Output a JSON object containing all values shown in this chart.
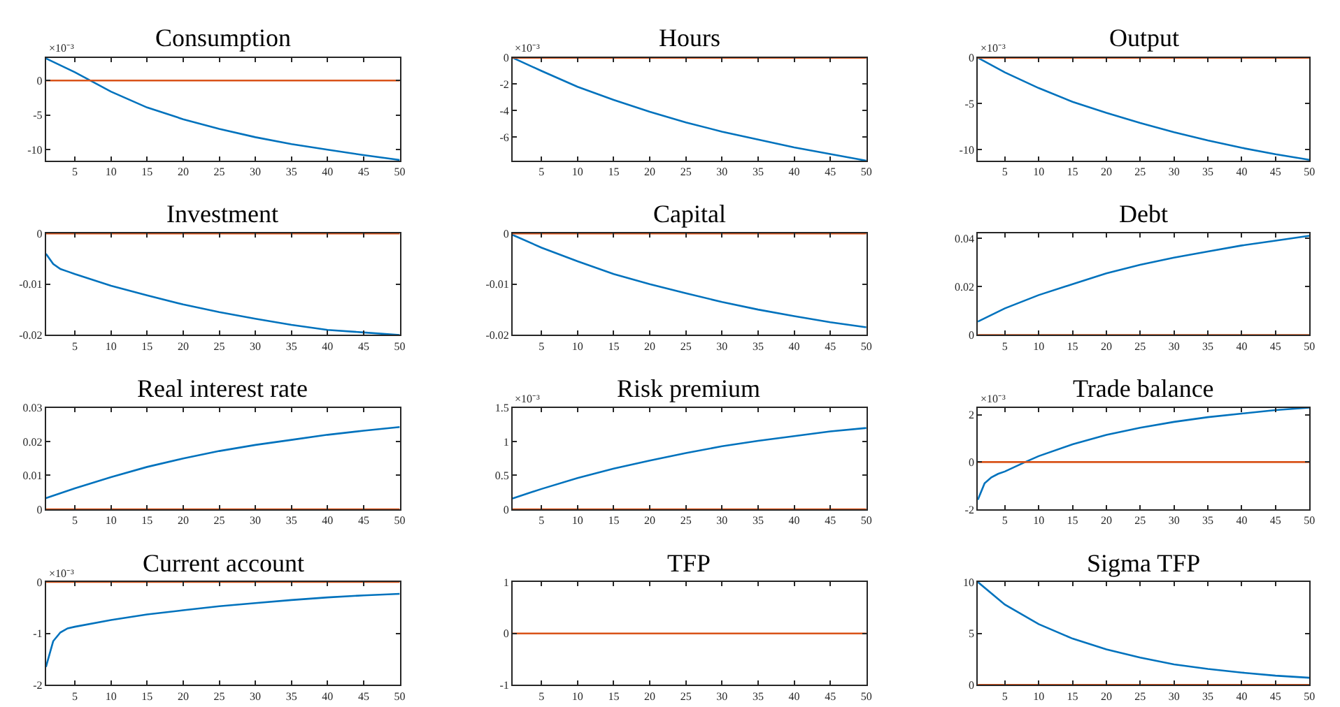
{
  "chart_data": [
    {
      "type": "line",
      "title": "Consumption",
      "annotations": [
        "×10⁻³"
      ],
      "xlim": [
        1,
        50
      ],
      "xticks": [
        5,
        10,
        15,
        20,
        25,
        30,
        35,
        40,
        45,
        50
      ],
      "ylim": [
        -11.6,
        3.3
      ],
      "yticks": [
        -10,
        -5,
        0
      ],
      "series": [
        {
          "color": "#0072bd",
          "x": [
            1,
            5,
            10,
            15,
            20,
            25,
            30,
            35,
            40,
            45,
            50
          ],
          "values": [
            3.2,
            1.2,
            -1.6,
            -3.9,
            -5.6,
            -7.0,
            -8.2,
            -9.2,
            -10.0,
            -10.8,
            -11.5
          ]
        },
        {
          "color": "#d95319",
          "x": [
            1,
            50
          ],
          "values": [
            0,
            0
          ]
        }
      ]
    },
    {
      "type": "line",
      "title": "Hours",
      "annotations": [
        "×10⁻³"
      ],
      "xlim": [
        1,
        50
      ],
      "xticks": [
        5,
        10,
        15,
        20,
        25,
        30,
        35,
        40,
        45,
        50
      ],
      "ylim": [
        -7.8,
        0
      ],
      "yticks": [
        -6,
        -4,
        -2,
        0
      ],
      "series": [
        {
          "color": "#0072bd",
          "x": [
            1,
            5,
            10,
            15,
            20,
            25,
            30,
            35,
            40,
            45,
            50
          ],
          "values": [
            0,
            -1.0,
            -2.2,
            -3.2,
            -4.1,
            -4.9,
            -5.6,
            -6.2,
            -6.8,
            -7.3,
            -7.8
          ]
        },
        {
          "color": "#d95319",
          "x": [
            1,
            50
          ],
          "values": [
            0,
            0
          ]
        }
      ]
    },
    {
      "type": "line",
      "title": "Output",
      "annotations": [
        "×10⁻³"
      ],
      "xlim": [
        1,
        50
      ],
      "xticks": [
        5,
        10,
        15,
        20,
        25,
        30,
        35,
        40,
        45,
        50
      ],
      "ylim": [
        -11.2,
        0
      ],
      "yticks": [
        -10,
        -5,
        0
      ],
      "series": [
        {
          "color": "#0072bd",
          "x": [
            1,
            5,
            10,
            15,
            20,
            25,
            30,
            35,
            40,
            45,
            50
          ],
          "values": [
            0,
            -1.6,
            -3.3,
            -4.8,
            -6.0,
            -7.1,
            -8.1,
            -9.0,
            -9.8,
            -10.5,
            -11.1
          ]
        },
        {
          "color": "#d95319",
          "x": [
            1,
            50
          ],
          "values": [
            0,
            0
          ]
        }
      ]
    },
    {
      "type": "line",
      "title": "Investment",
      "xlim": [
        1,
        50
      ],
      "xticks": [
        5,
        10,
        15,
        20,
        25,
        30,
        35,
        40,
        45,
        50
      ],
      "ylim": [
        -0.02,
        0
      ],
      "yticks": [
        -0.02,
        -0.01,
        0
      ],
      "series": [
        {
          "color": "#0072bd",
          "x": [
            1,
            2,
            3,
            4,
            5,
            10,
            15,
            20,
            25,
            30,
            35,
            40,
            45,
            50
          ],
          "values": [
            -0.004,
            -0.006,
            -0.007,
            -0.0075,
            -0.008,
            -0.0103,
            -0.0122,
            -0.014,
            -0.0155,
            -0.0168,
            -0.018,
            -0.019,
            -0.0195,
            -0.02
          ]
        },
        {
          "color": "#d95319",
          "x": [
            1,
            50
          ],
          "values": [
            0,
            0
          ]
        }
      ]
    },
    {
      "type": "line",
      "title": "Capital",
      "xlim": [
        1,
        50
      ],
      "xticks": [
        5,
        10,
        15,
        20,
        25,
        30,
        35,
        40,
        45,
        50
      ],
      "ylim": [
        -0.02,
        0
      ],
      "yticks": [
        -0.02,
        -0.01,
        0
      ],
      "series": [
        {
          "color": "#0072bd",
          "x": [
            1,
            5,
            10,
            15,
            20,
            25,
            30,
            35,
            40,
            45,
            50
          ],
          "values": [
            -0.0003,
            -0.0028,
            -0.0055,
            -0.008,
            -0.01,
            -0.0118,
            -0.0135,
            -0.015,
            -0.0163,
            -0.0175,
            -0.0185
          ]
        },
        {
          "color": "#d95319",
          "x": [
            1,
            50
          ],
          "values": [
            0,
            0
          ]
        }
      ]
    },
    {
      "type": "line",
      "title": "Debt",
      "xlim": [
        1,
        50
      ],
      "xticks": [
        5,
        10,
        15,
        20,
        25,
        30,
        35,
        40,
        45,
        50
      ],
      "ylim": [
        0,
        0.042
      ],
      "yticks": [
        0,
        0.02,
        0.04
      ],
      "series": [
        {
          "color": "#0072bd",
          "x": [
            1,
            5,
            10,
            15,
            20,
            25,
            30,
            35,
            40,
            45,
            50
          ],
          "values": [
            0.0055,
            0.011,
            0.0165,
            0.021,
            0.0255,
            0.029,
            0.032,
            0.0345,
            0.037,
            0.039,
            0.041
          ]
        },
        {
          "color": "#d95319",
          "x": [
            1,
            50
          ],
          "values": [
            0,
            0
          ]
        }
      ]
    },
    {
      "type": "line",
      "title": "Real interest rate",
      "xlim": [
        1,
        50
      ],
      "xticks": [
        5,
        10,
        15,
        20,
        25,
        30,
        35,
        40,
        45,
        50
      ],
      "ylim": [
        0,
        0.03
      ],
      "yticks": [
        0,
        0.01,
        0.02,
        0.03
      ],
      "series": [
        {
          "color": "#0072bd",
          "x": [
            1,
            5,
            10,
            15,
            20,
            25,
            30,
            35,
            40,
            45,
            50
          ],
          "values": [
            0.0033,
            0.0062,
            0.0095,
            0.0125,
            0.015,
            0.0172,
            0.019,
            0.0205,
            0.022,
            0.0232,
            0.0243
          ]
        },
        {
          "color": "#d95319",
          "x": [
            1,
            50
          ],
          "values": [
            0,
            0
          ]
        }
      ]
    },
    {
      "type": "line",
      "title": "Risk premium",
      "annotations": [
        "×10⁻³"
      ],
      "xlim": [
        1,
        50
      ],
      "xticks": [
        5,
        10,
        15,
        20,
        25,
        30,
        35,
        40,
        45,
        50
      ],
      "ylim": [
        0,
        1.5
      ],
      "yticks": [
        0,
        0.5,
        1,
        1.5
      ],
      "series": [
        {
          "color": "#0072bd",
          "x": [
            1,
            5,
            10,
            15,
            20,
            25,
            30,
            35,
            40,
            45,
            50
          ],
          "values": [
            0.16,
            0.3,
            0.46,
            0.6,
            0.72,
            0.83,
            0.93,
            1.01,
            1.08,
            1.15,
            1.2
          ]
        },
        {
          "color": "#d95319",
          "x": [
            1,
            50
          ],
          "values": [
            0,
            0
          ]
        }
      ]
    },
    {
      "type": "line",
      "title": "Trade balance",
      "annotations": [
        "×10⁻³"
      ],
      "xlim": [
        1,
        50
      ],
      "xticks": [
        5,
        10,
        15,
        20,
        25,
        30,
        35,
        40,
        45,
        50
      ],
      "ylim": [
        -2,
        2.3
      ],
      "yticks": [
        -2,
        0,
        2
      ],
      "series": [
        {
          "color": "#0072bd",
          "x": [
            1,
            2,
            3,
            4,
            5,
            8,
            10,
            15,
            20,
            25,
            30,
            35,
            40,
            45,
            50
          ],
          "values": [
            -1.6,
            -0.9,
            -0.65,
            -0.5,
            -0.4,
            0.0,
            0.25,
            0.75,
            1.15,
            1.45,
            1.7,
            1.9,
            2.05,
            2.2,
            2.3
          ]
        },
        {
          "color": "#d95319",
          "x": [
            1,
            50
          ],
          "values": [
            0,
            0
          ]
        }
      ]
    },
    {
      "type": "line",
      "title": "Current account",
      "annotations": [
        "×10⁻³"
      ],
      "xlim": [
        1,
        50
      ],
      "xticks": [
        5,
        10,
        15,
        20,
        25,
        30,
        35,
        40,
        45,
        50
      ],
      "ylim": [
        -2,
        0
      ],
      "yticks": [
        -2,
        -1,
        0
      ],
      "series": [
        {
          "color": "#0072bd",
          "x": [
            1,
            2,
            3,
            4,
            5,
            10,
            15,
            20,
            25,
            30,
            35,
            40,
            45,
            50
          ],
          "values": [
            -1.65,
            -1.15,
            -0.98,
            -0.9,
            -0.87,
            -0.74,
            -0.63,
            -0.55,
            -0.47,
            -0.41,
            -0.35,
            -0.3,
            -0.26,
            -0.23
          ]
        },
        {
          "color": "#d95319",
          "x": [
            1,
            50
          ],
          "values": [
            0,
            0
          ]
        }
      ]
    },
    {
      "type": "line",
      "title": "TFP",
      "xlim": [
        1,
        50
      ],
      "xticks": [
        5,
        10,
        15,
        20,
        25,
        30,
        35,
        40,
        45,
        50
      ],
      "ylim": [
        -1,
        1
      ],
      "yticks": [
        -1,
        0,
        1
      ],
      "series": [
        {
          "color": "#d95319",
          "x": [
            1,
            50
          ],
          "values": [
            0,
            0
          ]
        }
      ]
    },
    {
      "type": "line",
      "title": "Sigma TFP",
      "xlim": [
        1,
        50
      ],
      "xticks": [
        5,
        10,
        15,
        20,
        25,
        30,
        35,
        40,
        45,
        50
      ],
      "ylim": [
        0,
        10
      ],
      "yticks": [
        0,
        5,
        10
      ],
      "series": [
        {
          "color": "#0072bd",
          "x": [
            1,
            5,
            10,
            15,
            20,
            25,
            30,
            35,
            40,
            45,
            50
          ],
          "values": [
            10,
            7.8,
            5.9,
            4.5,
            3.45,
            2.65,
            2.0,
            1.55,
            1.2,
            0.9,
            0.7
          ]
        },
        {
          "color": "#d95319",
          "x": [
            1,
            50
          ],
          "values": [
            0,
            0
          ]
        }
      ]
    }
  ]
}
